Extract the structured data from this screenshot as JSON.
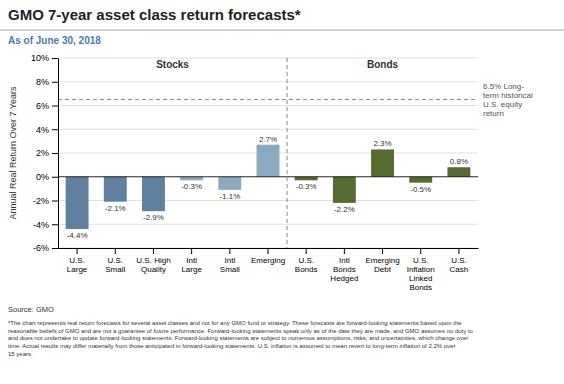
{
  "chart_data": {
    "type": "bar",
    "title": "GMO 7-year asset class return forecasts*",
    "subtitle": "As of June 30, 2018",
    "categories": [
      "U.S.\nLarge",
      "U.S.\nSmall",
      "U.S. High\nQuality",
      "Intl\nLarge",
      "Intl\nSmall",
      "Emerging",
      "U.S.\nBonds",
      "Intl\nBonds\nHedged",
      "Emerging\nDebt",
      "U.S.\nInflation\nLinked\nBonds",
      "U.S.\nCash"
    ],
    "values": [
      -4.4,
      -2.1,
      -2.9,
      -0.3,
      -1.1,
      2.7,
      -0.3,
      -2.2,
      2.3,
      -0.5,
      0.8
    ],
    "value_labels": [
      "-4.4%",
      "-2.1%",
      "-2.9%",
      "-0.3%",
      "-1.1%",
      "2.7%",
      "-0.3%",
      "-2.2%",
      "2.3%",
      "-0.5%",
      "0.8%"
    ],
    "data_labels": true,
    "colors": [
      "#6080a0",
      "#6080a0",
      "#6080a0",
      "#8aaac0",
      "#8aaac0",
      "#8aaac0",
      "#556b2f",
      "#556b2f",
      "#556b2f",
      "#556b2f",
      "#556b2f"
    ],
    "groups": [
      {
        "name": "Stocks",
        "size": 6
      },
      {
        "name": "Bonds",
        "size": 5
      }
    ],
    "reference_lines": [
      {
        "value": 6.5,
        "color": "#888888",
        "label": "6.5% Long-\nterm historical\nU.S. equity\nreturn"
      }
    ],
    "ylim": [
      -6,
      10
    ],
    "yticks": [
      {
        "value": -6,
        "label": "-6%"
      },
      {
        "value": -4,
        "label": "-4%"
      },
      {
        "value": -2,
        "label": "-2%"
      },
      {
        "value": 0,
        "label": "0%"
      },
      {
        "value": 2,
        "label": "2%"
      },
      {
        "value": 4,
        "label": "4%"
      },
      {
        "value": 6,
        "label": "6%"
      },
      {
        "value": 8,
        "label": "8%"
      },
      {
        "value": 10,
        "label": "10%"
      }
    ],
    "ylabel": "Annual Real Return Over 7 Years",
    "grid": true,
    "source": "Source: GMO",
    "footnote": "*The chart represents real return forecasts for several asset classes and not for any GMO fund or strategy. These forecasts are forward-looking statements based upon the\nreasonable beliefs of GMO and are not a guarantee of future performance.  Forward-looking statements speak only as of the date they are made, and GMO assumes no duty to\nand does not undertake to update forward-looking statements.  Forward-looking statements are subject to numerous assumptions, risks, and uncertainties, which change over\ntime.  Actual results may differ materially from those anticipated in forward-looking statements.  U.S. inflation is assumed to mean revert to long-term inflation of 2.2% over\n15 years."
  }
}
